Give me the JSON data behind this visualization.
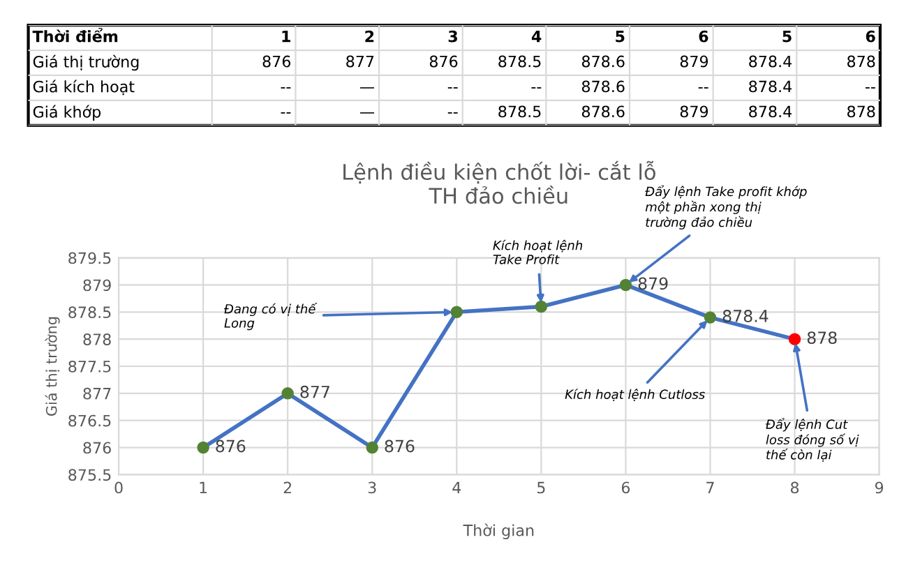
{
  "chart_data": [
    {
      "type": "heatmap",
      "ylabel": "Thời điểm",
      "color": "#ffffff",
      "categories": [
        "1",
        "2",
        "3",
        "4",
        "5",
        "6",
        "5",
        "6"
      ],
      "y_categories": [
        "Giá thị trường",
        "Giá kích hoạt",
        "Giá khớp"
      ],
      "cells": [
        [
          null,
          null,
          null,
          null,
          null,
          null,
          null,
          null
        ],
        [
          null,
          null,
          null,
          null,
          null,
          null,
          null,
          null
        ],
        [
          null,
          null,
          null,
          null,
          null,
          null,
          null,
          null
        ]
      ],
      "cell_labels": [
        [
          "876",
          "877",
          "876",
          "878.5",
          "878.6",
          "879",
          "878.4",
          "878"
        ],
        [
          "--",
          "—",
          "--",
          "--",
          "878.6",
          "--",
          "878.4",
          "--"
        ],
        [
          "--",
          "—",
          "--",
          "878.5",
          "878.6",
          "879",
          "878.4",
          "878"
        ]
      ]
    },
    {
      "type": "line",
      "title": "Lệnh điều kiện chốt lời- cắt lỗ\nTH đảo chiều",
      "xlabel": "Thời gian",
      "ylabel": "Giá thị trường",
      "x": [
        1,
        2,
        3,
        4,
        5,
        6,
        7,
        8
      ],
      "series": [
        {
          "color": "#4472c4",
          "values": [
            876,
            877,
            876,
            878.5,
            878.6,
            879,
            878.4,
            878
          ],
          "colors": [
            "#548235",
            "#548235",
            "#548235",
            "#548235",
            "#548235",
            "#548235",
            "#548235",
            "#ff0000"
          ],
          "value_labels": [
            "876",
            "877",
            "876",
            null,
            null,
            "879",
            "878.4",
            "878"
          ]
        }
      ],
      "marker": "circle",
      "line_style": "solid",
      "grid": true,
      "legend": false,
      "xlim": [
        0,
        9
      ],
      "xticks": [
        0,
        1,
        2,
        3,
        4,
        5,
        6,
        7,
        8,
        9
      ],
      "ylim": [
        875.5,
        879.5
      ],
      "yticks": [
        875.5,
        876,
        876.5,
        877,
        877.5,
        878,
        878.5,
        879,
        879.5
      ],
      "annotations": [
        {
          "text": "Đang có vị thế\nLong",
          "x": 4,
          "y": 878.5
        },
        {
          "text": "Kích hoạt lệnh\nTake Profit",
          "x": 5,
          "y": 878.6
        },
        {
          "text": "Đẩy lệnh Take profit khớp\nmột phần xong thị\ntrường đảo chiều",
          "x": 6,
          "y": 879
        },
        {
          "text": "Kích hoạt lệnh Cutloss",
          "x": 7,
          "y": 878.4
        },
        {
          "text": "Đẩy lệnh Cut\nloss đóng số vị\nthế còn lại",
          "x": 8,
          "y": 878
        }
      ]
    }
  ]
}
